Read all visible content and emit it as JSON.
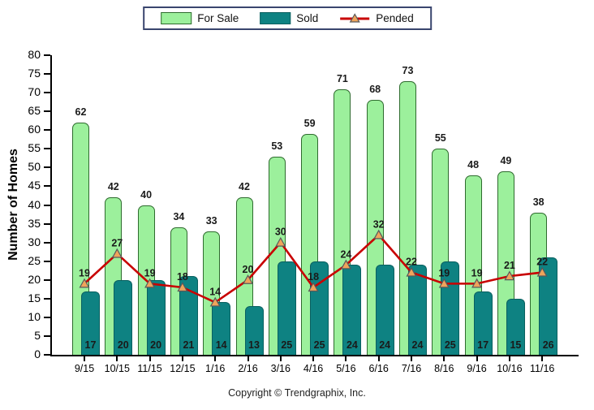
{
  "chart_data": {
    "type": "bar",
    "title": "",
    "categories": [
      "9/15",
      "10/15",
      "11/15",
      "12/15",
      "1/16",
      "2/16",
      "3/16",
      "4/16",
      "5/16",
      "6/16",
      "7/16",
      "8/16",
      "9/16",
      "10/16",
      "11/16"
    ],
    "series": [
      {
        "name": "For Sale",
        "type": "bar",
        "color": "#9cf09c",
        "border_color": "#2e6b2e",
        "values": [
          62,
          42,
          40,
          34,
          33,
          42,
          53,
          59,
          71,
          68,
          73,
          55,
          48,
          49,
          38
        ]
      },
      {
        "name": "Sold",
        "type": "bar",
        "color": "#0e8282",
        "border_color": "#0a6060",
        "values": [
          17,
          20,
          20,
          21,
          14,
          13,
          25,
          25,
          24,
          24,
          24,
          25,
          17,
          15,
          26
        ]
      },
      {
        "name": "Pended",
        "type": "line",
        "color": "#c80000",
        "marker": "triangle",
        "marker_fill": "#efa45b",
        "marker_border": "#58595b",
        "values": [
          19,
          27,
          19,
          18,
          14,
          20,
          30,
          18,
          24,
          32,
          22,
          19,
          19,
          21,
          22
        ]
      }
    ],
    "xlabel": "",
    "ylabel": "Number of Homes",
    "ylim": [
      0,
      80
    ],
    "ytick_step": 5,
    "grid": false,
    "legend_position": "top-center"
  },
  "footer": {
    "copyright": "Copyright © Trendgraphix, Inc."
  }
}
